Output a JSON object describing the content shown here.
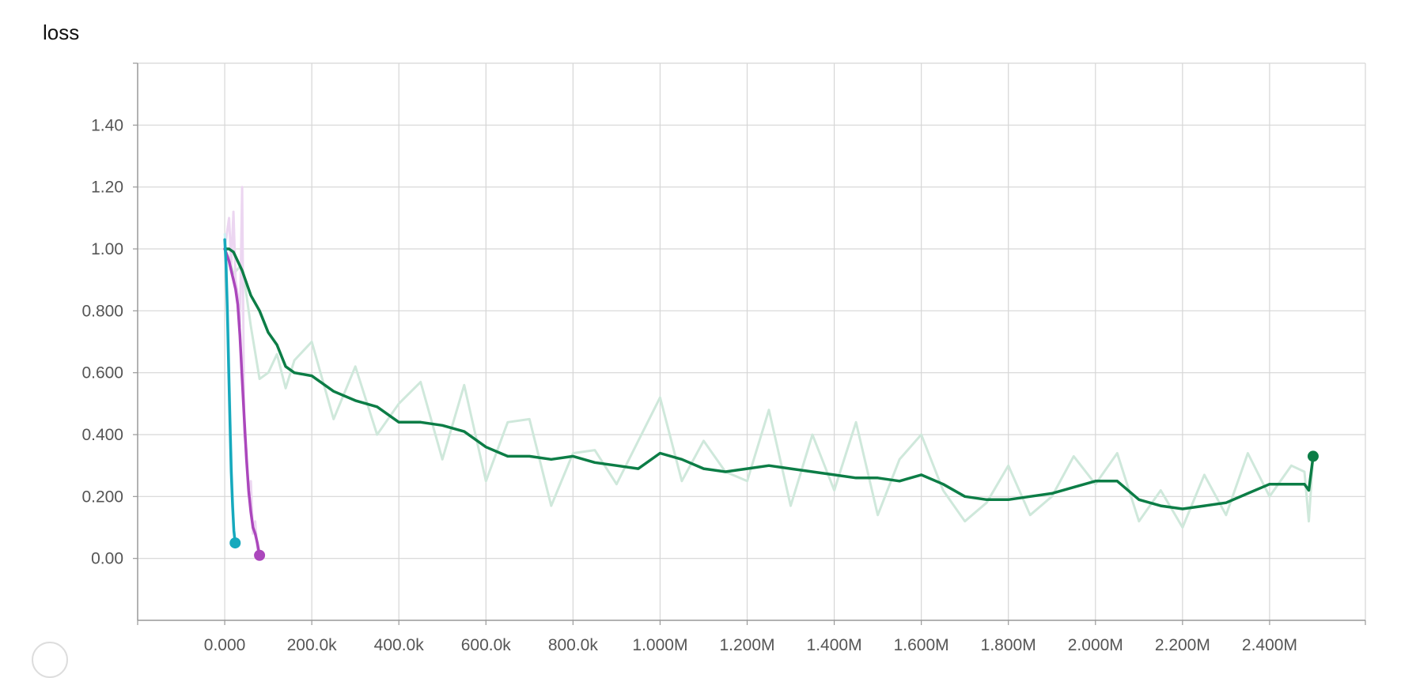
{
  "chart_data": {
    "type": "line",
    "title": "loss",
    "xlabel": "",
    "ylabel": "",
    "xlim": [
      -200000,
      2620000
    ],
    "ylim": [
      -0.2,
      1.6
    ],
    "grid": true,
    "x_ticks": [
      {
        "value": 0,
        "label": "0.000"
      },
      {
        "value": 200000,
        "label": "200.0k"
      },
      {
        "value": 400000,
        "label": "400.0k"
      },
      {
        "value": 600000,
        "label": "600.0k"
      },
      {
        "value": 800000,
        "label": "800.0k"
      },
      {
        "value": 1000000,
        "label": "1.000M"
      },
      {
        "value": 1200000,
        "label": "1.200M"
      },
      {
        "value": 1400000,
        "label": "1.400M"
      },
      {
        "value": 1600000,
        "label": "1.600M"
      },
      {
        "value": 1800000,
        "label": "1.800M"
      },
      {
        "value": 2000000,
        "label": "2.000M"
      },
      {
        "value": 2200000,
        "label": "2.200M"
      },
      {
        "value": 2400000,
        "label": "2.400M"
      }
    ],
    "y_ticks": [
      {
        "value": 0.0,
        "label": "0.00"
      },
      {
        "value": 0.2,
        "label": "0.200"
      },
      {
        "value": 0.4,
        "label": "0.400"
      },
      {
        "value": 0.6,
        "label": "0.600"
      },
      {
        "value": 0.8,
        "label": "0.800"
      },
      {
        "value": 1.0,
        "label": "1.00"
      },
      {
        "value": 1.2,
        "label": "1.20"
      },
      {
        "value": 1.4,
        "label": "1.40"
      }
    ],
    "series": [
      {
        "color": "#0c7d46",
        "raw_color": "#cfe8db",
        "x": [
          0,
          10000,
          20000,
          40000,
          60000,
          80000,
          100000,
          120000,
          140000,
          160000,
          200000,
          250000,
          300000,
          350000,
          400000,
          450000,
          500000,
          550000,
          600000,
          650000,
          700000,
          750000,
          800000,
          850000,
          900000,
          950000,
          1000000,
          1050000,
          1100000,
          1150000,
          1200000,
          1250000,
          1300000,
          1350000,
          1400000,
          1450000,
          1500000,
          1550000,
          1600000,
          1650000,
          1700000,
          1750000,
          1800000,
          1850000,
          1900000,
          1950000,
          2000000,
          2050000,
          2100000,
          2150000,
          2200000,
          2250000,
          2300000,
          2350000,
          2400000,
          2450000,
          2480000,
          2490000,
          2500000
        ],
        "y": [
          1.0,
          1.0,
          0.99,
          0.93,
          0.85,
          0.8,
          0.73,
          0.69,
          0.62,
          0.6,
          0.59,
          0.54,
          0.51,
          0.49,
          0.44,
          0.44,
          0.43,
          0.41,
          0.36,
          0.33,
          0.33,
          0.32,
          0.33,
          0.31,
          0.3,
          0.29,
          0.34,
          0.32,
          0.29,
          0.28,
          0.29,
          0.3,
          0.29,
          0.28,
          0.27,
          0.26,
          0.26,
          0.25,
          0.27,
          0.24,
          0.2,
          0.19,
          0.19,
          0.2,
          0.21,
          0.23,
          0.25,
          0.25,
          0.19,
          0.17,
          0.16,
          0.17,
          0.18,
          0.21,
          0.24,
          0.24,
          0.24,
          0.22,
          0.33
        ],
        "raw_y": [
          1.0,
          0.97,
          0.92,
          0.95,
          0.75,
          0.58,
          0.6,
          0.66,
          0.55,
          0.64,
          0.7,
          0.45,
          0.62,
          0.4,
          0.5,
          0.57,
          0.32,
          0.56,
          0.25,
          0.44,
          0.45,
          0.17,
          0.34,
          0.35,
          0.24,
          0.38,
          0.52,
          0.25,
          0.38,
          0.28,
          0.25,
          0.48,
          0.17,
          0.4,
          0.22,
          0.44,
          0.14,
          0.32,
          0.4,
          0.22,
          0.12,
          0.18,
          0.3,
          0.14,
          0.2,
          0.33,
          0.24,
          0.34,
          0.12,
          0.22,
          0.1,
          0.27,
          0.14,
          0.34,
          0.2,
          0.3,
          0.28,
          0.12,
          0.33
        ]
      },
      {
        "color": "#ab47bc",
        "raw_color": "#ecd6f1",
        "x": [
          0,
          5000,
          10000,
          15000,
          20000,
          25000,
          30000,
          35000,
          40000,
          45000,
          50000,
          55000,
          60000,
          65000,
          70000,
          75000,
          80000
        ],
        "y": [
          1.0,
          0.98,
          0.96,
          0.93,
          0.9,
          0.87,
          0.82,
          0.72,
          0.58,
          0.45,
          0.32,
          0.22,
          0.15,
          0.1,
          0.08,
          0.05,
          0.01
        ],
        "raw_y": [
          1.0,
          1.05,
          1.1,
          0.95,
          1.12,
          0.9,
          0.85,
          0.75,
          1.2,
          0.4,
          0.35,
          0.2,
          0.25,
          0.08,
          0.12,
          0.03,
          0.01
        ]
      },
      {
        "color": "#16a9bd",
        "raw_color": "#cbeff3",
        "x": [
          0,
          3000,
          6000,
          9000,
          12000,
          15000,
          18000,
          21000,
          24000
        ],
        "y": [
          1.03,
          0.95,
          0.8,
          0.62,
          0.44,
          0.28,
          0.17,
          0.09,
          0.05
        ],
        "raw_y": [
          1.05,
          1.0,
          0.85,
          0.7,
          0.5,
          0.35,
          0.2,
          0.1,
          0.05
        ]
      }
    ]
  }
}
